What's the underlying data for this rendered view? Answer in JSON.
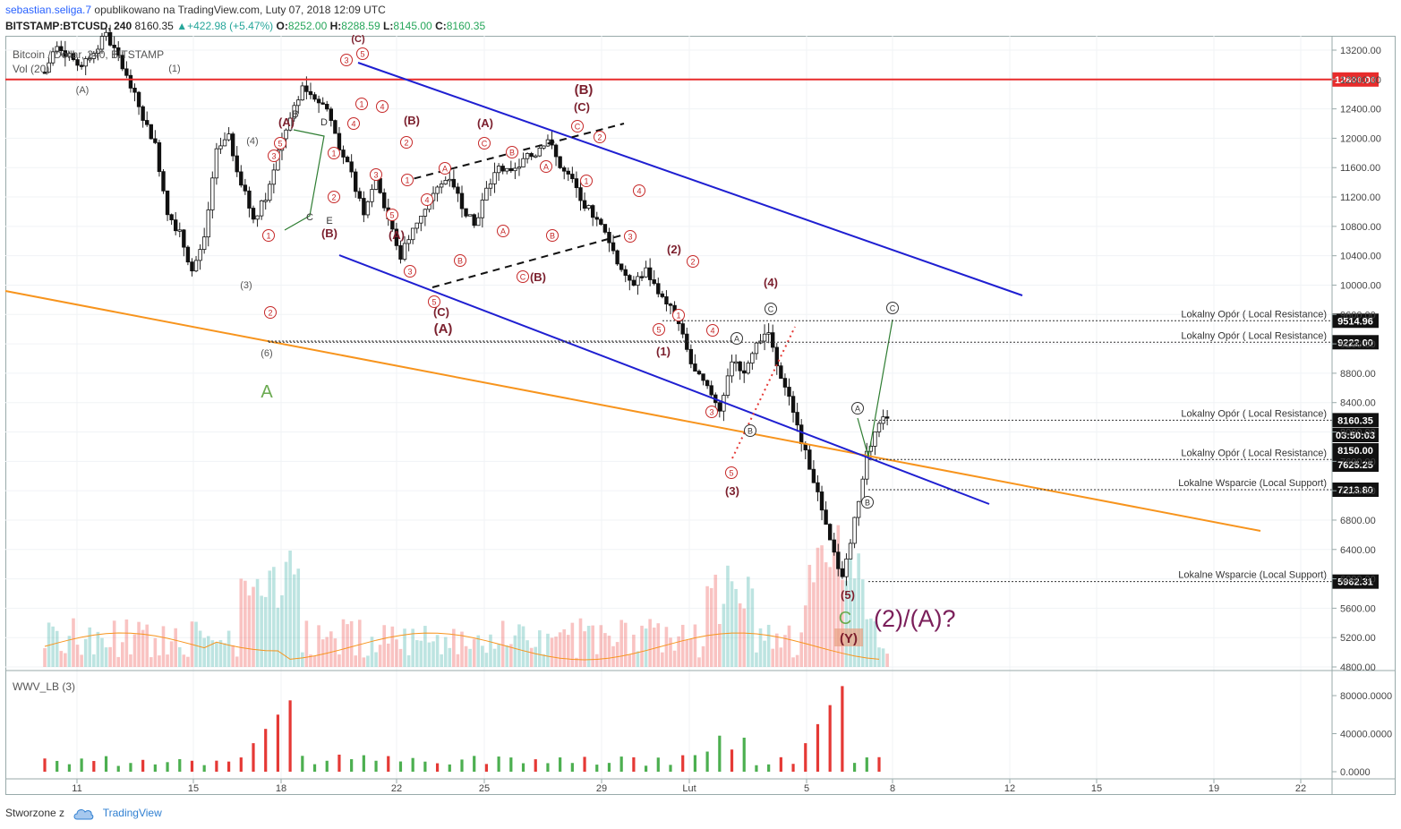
{
  "header": {
    "author": "sebastian.seliga.7",
    "published": "opublikowano na TradingView.com, Luty 07, 2018 12:09 UTC",
    "symbol": "BITSTAMP:BTCUSD, 240",
    "last": "8160.35",
    "change": "+422.98 (+5.47%)",
    "o_label": "O:",
    "o": "8252.00",
    "h_label": "H:",
    "h": "8288.59",
    "l_label": "L:",
    "l": "8145.00",
    "c_label": "C:",
    "c": "8160.35"
  },
  "legend": {
    "title": "Bitcoin / Dollar, 240, BITSTAMP",
    "volume": "Vol (20)",
    "indicator": "WWV_LB (3)"
  },
  "footer": {
    "created_with": "Stworzone z",
    "brand": "TradingView"
  },
  "colors": {
    "up": "#26a69a",
    "down": "#ef5350",
    "wave": "#7b1f2d",
    "channel": "#1f1fd1",
    "trend": "#f7941d",
    "resistance": "#e82b2b"
  },
  "chart_data": {
    "type": "candlestick",
    "x_ticks": [
      "11",
      "15",
      "18",
      "22",
      "25",
      "29",
      "Lut",
      "5",
      "8",
      "12",
      "15",
      "19",
      "22"
    ],
    "y_ticks": [
      "13200.00",
      "12800.00",
      "12400.00",
      "12000.00",
      "11600.00",
      "11200.00",
      "10800.00",
      "10400.00",
      "10000.00",
      "9600.00",
      "9200.00",
      "8800.00",
      "8400.00",
      "8000.00",
      "7600.00",
      "7200.00",
      "6800.00",
      "6400.00",
      "6000.00",
      "5600.00",
      "5200.00",
      "4800.00"
    ],
    "y_range": [
      4800,
      13600
    ],
    "osc_ticks": [
      "80000.0000",
      "40000.0000",
      "0.0000"
    ],
    "osc_range": [
      -5000,
      95000
    ],
    "price_tags": [
      {
        "value": "12800.00",
        "color": "#e82b2b"
      },
      {
        "value": "9514.96",
        "color": "#111"
      },
      {
        "value": "9222.00",
        "color": "#111"
      },
      {
        "value": "8160.35",
        "color": "#111"
      },
      {
        "value": "03:50:03",
        "color": "#111"
      },
      {
        "value": "8150.00",
        "color": "#111"
      },
      {
        "value": "7625.25",
        "color": "#111"
      },
      {
        "value": "7213.80",
        "color": "#111"
      },
      {
        "value": "5962.31",
        "color": "#111"
      }
    ],
    "levels": [
      {
        "label": "Lokalny Opór ( Local Resistance)",
        "price": 9514.96
      },
      {
        "label": "Lokalny Opór ( Local Resistance)",
        "price": 9222.0
      },
      {
        "label": "Lokalny Opór ( Local Resistance)",
        "price": 8160.35
      },
      {
        "label": "Lokalny Opór ( Local Resistance)",
        "price": 7625.25
      },
      {
        "label": "Lokalne Wsparcie (Local Support)",
        "price": 7213.8
      },
      {
        "label": "Lokalne Wsparcie (Local Support)",
        "price": 5962.31
      }
    ],
    "close_path": [
      12900,
      13300,
      13100,
      12950,
      13200,
      13400,
      13100,
      12700,
      12300,
      11900,
      11000,
      10700,
      10200,
      10600,
      11800,
      12000,
      11400,
      10900,
      11200,
      11800,
      12300,
      12700,
      12550,
      12400,
      11900,
      11500,
      11000,
      11500,
      10900,
      10400,
      10800,
      11000,
      11300,
      11500,
      11100,
      10800,
      11300,
      11600,
      11500,
      11700,
      11800,
      12000,
      11600,
      11400,
      11100,
      10900,
      10600,
      10200,
      10050,
      10200,
      9900,
      9700,
      9300,
      8800,
      8600,
      8300,
      9000,
      8800,
      9200,
      9400,
      8700,
      8300,
      7700,
      7200,
      6500,
      6000,
      6800,
      7700,
      8160
    ],
    "annotations": [
      "(A)",
      "(1)",
      "(4)",
      "(3)",
      "(6)",
      "A",
      "(A)",
      "B",
      "D",
      "C",
      "E",
      "(B)",
      "(C)",
      "(A)",
      "(B)",
      "(A)",
      "(C)",
      "(A)",
      "(B)",
      "(B)",
      "(C)",
      "(2)",
      "(1)",
      "(3)",
      "(4)",
      "(5)",
      "(Y)",
      "C",
      "(2)/(A)?"
    ]
  }
}
